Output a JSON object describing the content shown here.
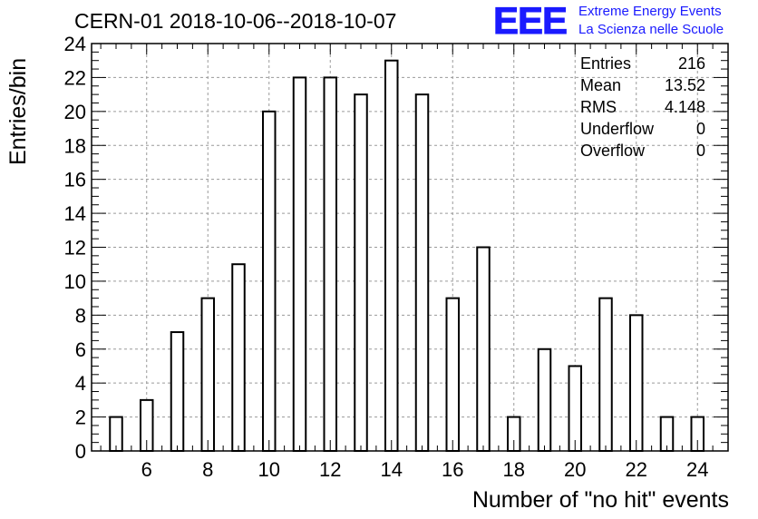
{
  "title": "CERN-01 2018-10-06--2018-10-07",
  "logo": {
    "mark": "EEE",
    "line1": "Extreme Energy Events",
    "line2": "La Scienza nelle Scuole",
    "color": "#1a1aff"
  },
  "stats": [
    {
      "label": "Entries",
      "value": "216"
    },
    {
      "label": "Mean",
      "value": "13.52"
    },
    {
      "label": "RMS",
      "value": "4.148"
    },
    {
      "label": "Underflow",
      "value": "0"
    },
    {
      "label": "Overflow",
      "value": "0"
    }
  ],
  "chart_data": {
    "type": "bar",
    "title": "CERN-01 2018-10-06--2018-10-07",
    "xlabel": "Number of \"no hit\" events",
    "ylabel": "Entries/bin",
    "xlim": [
      4.2,
      25
    ],
    "ylim": [
      0,
      24
    ],
    "x_ticks": [
      6,
      8,
      10,
      12,
      14,
      16,
      18,
      20,
      22,
      24
    ],
    "y_ticks": [
      0,
      2,
      4,
      6,
      8,
      10,
      12,
      14,
      16,
      18,
      20,
      22,
      24
    ],
    "grid": true,
    "bin_width": 0.4,
    "x": [
      5,
      6,
      7,
      8,
      9,
      10,
      11,
      12,
      13,
      14,
      15,
      16,
      17,
      18,
      19,
      20,
      21,
      22,
      23,
      24
    ],
    "values": [
      2,
      3,
      7,
      9,
      11,
      20,
      22,
      22,
      21,
      23,
      21,
      9,
      12,
      2,
      6,
      5,
      9,
      8,
      2,
      2
    ]
  }
}
